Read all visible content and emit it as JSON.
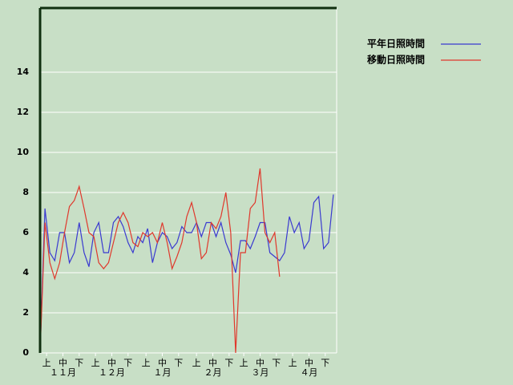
{
  "chart_data": {
    "type": "line",
    "x": [
      0,
      3,
      6,
      9,
      12,
      15,
      18,
      21,
      24,
      27,
      30,
      33,
      36,
      39,
      42,
      45,
      48,
      51,
      54,
      57,
      60,
      63,
      66,
      69,
      72,
      75,
      78,
      81,
      84,
      87,
      90,
      93,
      96,
      99,
      102,
      105,
      108,
      111,
      114,
      117,
      120,
      123,
      126,
      129,
      132,
      135,
      138,
      141,
      144,
      147,
      150,
      153,
      156,
      159,
      162,
      165,
      168,
      171,
      174,
      177,
      180
    ],
    "series": [
      {
        "name": "平年日照時間",
        "color": "#3a3ad0",
        "values": [
          0,
          7.2,
          5.0,
          4.6,
          6.0,
          6.0,
          4.5,
          5.0,
          6.5,
          5.0,
          4.3,
          6.0,
          6.5,
          5.0,
          5.0,
          6.5,
          6.8,
          6.3,
          5.5,
          5.0,
          5.8,
          5.5,
          6.2,
          4.5,
          5.5,
          6.0,
          5.8,
          5.2,
          5.5,
          6.3,
          6.0,
          6.0,
          6.5,
          5.8,
          6.5,
          6.5,
          5.8,
          6.5,
          5.5,
          4.9,
          4.0,
          5.6,
          5.6,
          5.2,
          5.8,
          6.5,
          6.5,
          5.0,
          4.8,
          4.6,
          5.0,
          6.8,
          6.0,
          6.5,
          5.2,
          5.6,
          7.5,
          7.8,
          5.2,
          5.5,
          7.9
        ]
      },
      {
        "name": "移動日照時間",
        "color": "#e0382c",
        "values": [
          0,
          6.5,
          4.5,
          3.7,
          4.5,
          6.0,
          7.3,
          7.6,
          8.3,
          7.2,
          6.0,
          5.8,
          4.5,
          4.2,
          4.5,
          5.5,
          6.5,
          7.0,
          6.5,
          5.5,
          5.3,
          6.0,
          5.8,
          6.0,
          5.5,
          6.5,
          5.5,
          4.2,
          4.8,
          5.5,
          6.8,
          7.5,
          6.5,
          4.7,
          5.0,
          6.5,
          6.2,
          6.8,
          8.0,
          6.0,
          0,
          5.0,
          5.0,
          7.2,
          7.5,
          9.2,
          6.0,
          5.5,
          6.0,
          3.8,
          null,
          null,
          null,
          null,
          null,
          null,
          null,
          null,
          null,
          null,
          null
        ]
      }
    ],
    "xlim": [
      0,
      182
    ],
    "xticks": [
      {
        "value": 4,
        "label": "上"
      },
      {
        "value": 14,
        "label": "中"
      },
      {
        "value": 24,
        "label": "下"
      },
      {
        "value": 34,
        "label": "上"
      },
      {
        "value": 44,
        "label": "中"
      },
      {
        "value": 54,
        "label": "下"
      },
      {
        "value": 65,
        "label": "上"
      },
      {
        "value": 75,
        "label": "中"
      },
      {
        "value": 85,
        "label": "下"
      },
      {
        "value": 96,
        "label": "上"
      },
      {
        "value": 106,
        "label": "中"
      },
      {
        "value": 116,
        "label": "下"
      },
      {
        "value": 125,
        "label": "上"
      },
      {
        "value": 135,
        "label": "中"
      },
      {
        "value": 145,
        "label": "下"
      },
      {
        "value": 155,
        "label": "上"
      },
      {
        "value": 165,
        "label": "中"
      },
      {
        "value": 175,
        "label": "下"
      }
    ],
    "months": [
      {
        "value": 14,
        "label": "１１月"
      },
      {
        "value": 44,
        "label": "１２月"
      },
      {
        "value": 75,
        "label": "１月"
      },
      {
        "value": 106,
        "label": "２月"
      },
      {
        "value": 135,
        "label": "３月"
      },
      {
        "value": 165,
        "label": "４月"
      }
    ],
    "ylim": [
      0,
      17.2
    ],
    "yticks": [
      0,
      2,
      4,
      6,
      8,
      10,
      12,
      14
    ],
    "grid": true
  }
}
